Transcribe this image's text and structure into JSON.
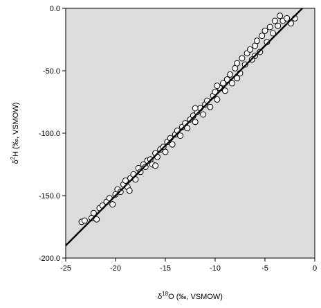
{
  "chart_data": {
    "type": "scatter",
    "x_label": {
      "symbol": "δ",
      "superscript": "18",
      "text": "O (‰, VSMOW)"
    },
    "y_label": {
      "symbol": "δ",
      "superscript": "2",
      "text": "H (‰, VSMOW)"
    },
    "x": [
      -23.4,
      -23.1,
      -22.4,
      -22.2,
      -21.9,
      -21.6,
      -21.3,
      -20.9,
      -20.6,
      -20.3,
      -20.0,
      -19.8,
      -19.5,
      -19.2,
      -19.0,
      -18.8,
      -18.5,
      -18.2,
      -18.0,
      -17.7,
      -17.5,
      -17.2,
      -17.0,
      -16.8,
      -16.5,
      -16.3,
      -16.0,
      -15.8,
      -15.5,
      -15.2,
      -15.0,
      -14.8,
      -14.5,
      -14.3,
      -14.0,
      -13.8,
      -13.5,
      -13.3,
      -13.0,
      -12.8,
      -12.5,
      -12.2,
      -12.0,
      -11.8,
      -11.5,
      -11.2,
      -11.0,
      -10.8,
      -10.5,
      -10.2,
      -10.0,
      -9.8,
      -9.5,
      -9.2,
      -9.0,
      -8.8,
      -8.5,
      -8.3,
      -8.0,
      -7.8,
      -7.5,
      -7.3,
      -7.0,
      -6.8,
      -6.5,
      -6.3,
      -6.0,
      -5.8,
      -5.5,
      -5.3,
      -5.0,
      -4.8,
      -4.5,
      -4.2,
      -4.0,
      -3.7,
      -3.5,
      -3.2,
      -2.8,
      -2.4,
      -2.0,
      -7.8,
      -6.0,
      -9.8,
      -12.0,
      -16.0,
      -18.6
    ],
    "y": [
      -171,
      -170,
      -168,
      -164,
      -169,
      -160,
      -158,
      -155,
      -152,
      -157,
      -149,
      -145,
      -147,
      -141,
      -138,
      -143,
      -136,
      -133,
      -137,
      -128,
      -131,
      -125,
      -127,
      -122,
      -121,
      -125,
      -116,
      -119,
      -113,
      -111,
      -115,
      -107,
      -104,
      -109,
      -101,
      -98,
      -102,
      -95,
      -92,
      -96,
      -89,
      -86,
      -91,
      -83,
      -80,
      -85,
      -77,
      -74,
      -79,
      -70,
      -67,
      -73,
      -64,
      -60,
      -66,
      -57,
      -53,
      -60,
      -48,
      -44,
      -52,
      -40,
      -45,
      -36,
      -33,
      -41,
      -30,
      -26,
      -35,
      -22,
      -18,
      -27,
      -15,
      -20,
      -10,
      -14,
      -6,
      -10,
      -8,
      -12,
      -8,
      -56,
      -38,
      -62,
      -80,
      -126,
      -146
    ],
    "point_color": "#ffffff",
    "fit_line": {
      "x": [
        -25,
        -1.25
      ],
      "y": [
        -190,
        0
      ],
      "color": "#000000"
    },
    "xlim": [
      -25,
      0
    ],
    "ylim": [
      -200,
      0
    ],
    "xticks": [
      -25,
      -20,
      -15,
      -10,
      -5,
      0
    ],
    "yticks": [
      {
        "value": 0,
        "label": "0.0"
      },
      {
        "value": -50,
        "label": "-50.0"
      },
      {
        "value": -100,
        "label": "-100.0"
      },
      {
        "value": -150,
        "label": "-150.0"
      },
      {
        "value": -200,
        "label": "-200.0"
      }
    ],
    "background": "#dcdcdc"
  }
}
